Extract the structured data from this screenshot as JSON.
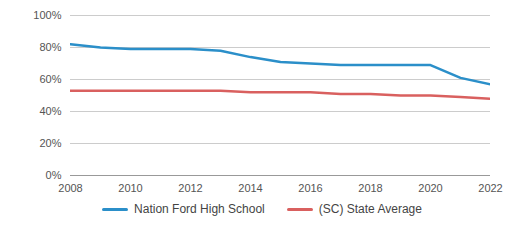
{
  "chart_data": {
    "type": "line",
    "x": [
      2008,
      2009,
      2010,
      2011,
      2012,
      2013,
      2014,
      2015,
      2016,
      2017,
      2018,
      2019,
      2020,
      2021,
      2022
    ],
    "series": [
      {
        "name": "Nation Ford High School",
        "color": "#2b8fc9",
        "values": [
          82,
          80,
          79,
          79,
          79,
          78,
          74,
          71,
          70,
          69,
          69,
          69,
          69,
          61,
          57
        ]
      },
      {
        "name": "(SC) State Average",
        "color": "#d9605f",
        "values": [
          53,
          53,
          53,
          53,
          53,
          53,
          52,
          52,
          52,
          51,
          51,
          50,
          50,
          49,
          48
        ]
      }
    ],
    "xlim": [
      2008,
      2022
    ],
    "xticks": [
      2008,
      2010,
      2012,
      2014,
      2016,
      2018,
      2020,
      2022
    ],
    "ylim": [
      0,
      100
    ],
    "yticks": [
      {
        "value": 0,
        "label": "0%"
      },
      {
        "value": 20,
        "label": "20%"
      },
      {
        "value": 40,
        "label": "40%"
      },
      {
        "value": 60,
        "label": "60%"
      },
      {
        "value": 80,
        "label": "80%"
      },
      {
        "value": 100,
        "label": "100%"
      }
    ],
    "grid": true,
    "legend": "bottom"
  }
}
